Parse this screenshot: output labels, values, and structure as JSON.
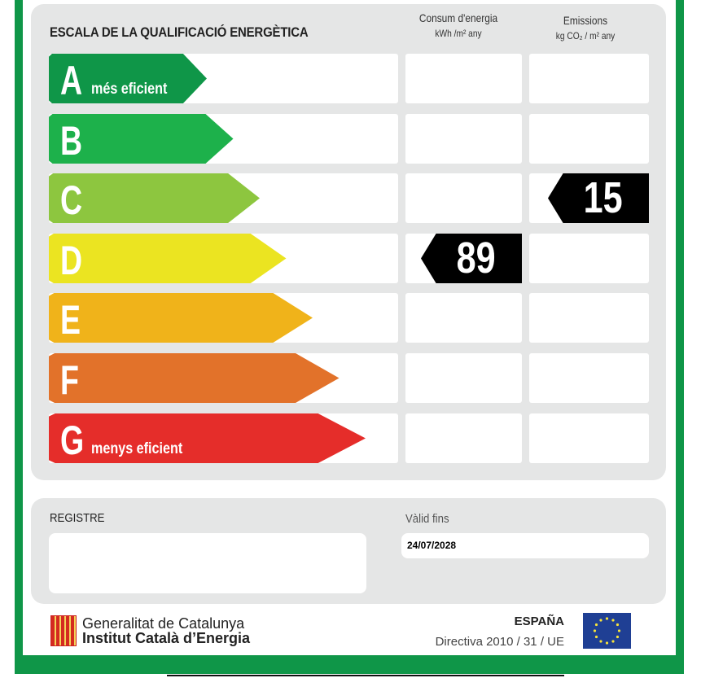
{
  "header": {
    "title": "ESCALA DE LA QUALIFICACIÓ ENERGÈTICA",
    "col_energy": "Consum d'energia",
    "col_energy_unit": "kWh /m² any",
    "col_emissions": "Emissions",
    "col_emissions_unit": "kg CO₂ / m² any"
  },
  "ratings": [
    {
      "letter": "A",
      "label": "més eficient",
      "color": "#0f9648"
    },
    {
      "letter": "B",
      "label": "",
      "color": "#1db14b"
    },
    {
      "letter": "C",
      "label": "",
      "color": "#8dc63f"
    },
    {
      "letter": "D",
      "label": "",
      "color": "#ebe421"
    },
    {
      "letter": "E",
      "label": "",
      "color": "#f0b31a"
    },
    {
      "letter": "F",
      "label": "",
      "color": "#e2722a"
    },
    {
      "letter": "G",
      "label": "menys eficient",
      "color": "#e52d2a"
    }
  ],
  "energy": {
    "value": "89",
    "rating": "D"
  },
  "emissions": {
    "value": "15",
    "rating": "C"
  },
  "registry": {
    "label": "REGISTRE",
    "value": "",
    "valid_label": "Vàlid fins",
    "valid_date": "24/07/2028"
  },
  "footer": {
    "org1": "Generalitat de Catalunya",
    "org2": "Institut Català d’Energia",
    "country": "ESPAÑA",
    "directive": "Directiva 2010 / 31 / UE"
  }
}
